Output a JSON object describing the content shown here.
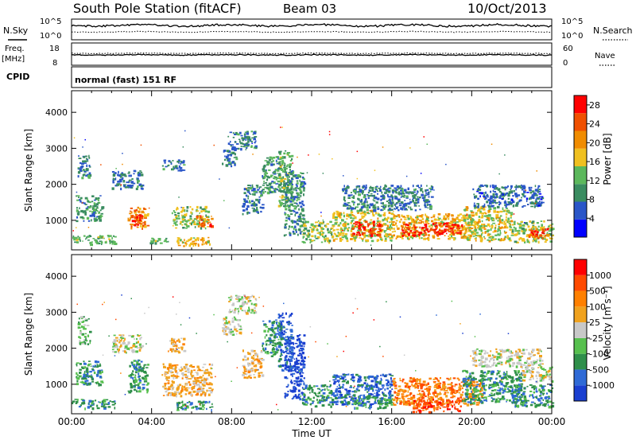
{
  "header": {
    "station": "South Pole Station (fitACF)",
    "beam": "Beam 03",
    "date": "10/Oct/2013"
  },
  "strip_labels": {
    "nsky": "N.Sky",
    "nsearch": "N.Search",
    "freq": "Freq.",
    "freq_unit": "[MHz]",
    "nave": "Nave",
    "cpid": "CPID",
    "cpid_value": "normal (fast) 151 RF",
    "nsky_ticks": [
      "10^5",
      "10^0"
    ],
    "nsearch_ticks": [
      "10^5",
      "10^0"
    ],
    "freq_ticks": [
      "18",
      "8"
    ],
    "nave_ticks": [
      "60",
      "0"
    ]
  },
  "colors": {
    "power_scale": [
      "#0000ff",
      "#2a56c8",
      "#3a8c60",
      "#5cb85c",
      "#f0c020",
      "#f08c00",
      "#f05000",
      "#ff0000"
    ],
    "velocity_scale": [
      "#1a3fd0",
      "#2f6ad6",
      "#2f8f4a",
      "#57c04e",
      "#c8c8c8",
      "#f0a21e",
      "#ff8000",
      "#ff4a00",
      "#ff0000"
    ]
  },
  "chart_data": [
    {
      "type": "heatmap",
      "name": "power",
      "ylabel": "Slant Range [km]",
      "xlim": [
        0,
        24
      ],
      "ylim": [
        180,
        4600
      ],
      "yticks": [
        "1000",
        "2000",
        "3000",
        "4000"
      ],
      "colorbar": {
        "label": "Power [dB]",
        "ticks": [
          "4",
          "8",
          "12",
          "16",
          "20",
          "24",
          "28"
        ],
        "range": [
          0,
          30
        ]
      },
      "regions": [
        {
          "t0": 0.3,
          "t1": 0.9,
          "r0": 2200,
          "r1": 2900,
          "level": 8
        },
        {
          "t0": 0.2,
          "t1": 1.5,
          "r0": 1000,
          "r1": 1700,
          "level": 10
        },
        {
          "t0": 0.0,
          "t1": 2.2,
          "r0": 350,
          "r1": 600,
          "level": 12
        },
        {
          "t0": 2.0,
          "t1": 3.5,
          "r0": 1900,
          "r1": 2400,
          "level": 8
        },
        {
          "t0": 2.8,
          "t1": 3.8,
          "r0": 800,
          "r1": 1400,
          "level": 20
        },
        {
          "t0": 3.0,
          "t1": 3.5,
          "r0": 900,
          "r1": 1200,
          "level": 26
        },
        {
          "t0": 3.8,
          "t1": 5.0,
          "r0": 380,
          "r1": 520,
          "level": 12
        },
        {
          "t0": 4.5,
          "t1": 5.6,
          "r0": 2400,
          "r1": 2700,
          "level": 8
        },
        {
          "t0": 5.0,
          "t1": 6.8,
          "r0": 800,
          "r1": 1400,
          "level": 14
        },
        {
          "t0": 6.2,
          "t1": 7.0,
          "r0": 850,
          "r1": 1150,
          "level": 24
        },
        {
          "t0": 5.2,
          "t1": 7.0,
          "r0": 300,
          "r1": 550,
          "level": 18
        },
        {
          "t0": 7.5,
          "t1": 8.2,
          "r0": 2500,
          "r1": 3000,
          "level": 8
        },
        {
          "t0": 7.8,
          "t1": 9.2,
          "r0": 3000,
          "r1": 3500,
          "level": 8
        },
        {
          "t0": 8.5,
          "t1": 9.5,
          "r0": 1200,
          "r1": 2000,
          "level": 8
        },
        {
          "t0": 9.5,
          "t1": 10.5,
          "r0": 1800,
          "r1": 2800,
          "level": 10
        },
        {
          "t0": 10.3,
          "t1": 11.0,
          "r0": 1400,
          "r1": 3000,
          "level": 12
        },
        {
          "t0": 10.6,
          "t1": 11.6,
          "r0": 600,
          "r1": 2400,
          "level": 9
        },
        {
          "t0": 11.5,
          "t1": 13.0,
          "r0": 400,
          "r1": 1000,
          "level": 14
        },
        {
          "t0": 13.0,
          "t1": 16.0,
          "r0": 450,
          "r1": 1300,
          "level": 16
        },
        {
          "t0": 14.0,
          "t1": 15.5,
          "r0": 600,
          "r1": 1000,
          "level": 26
        },
        {
          "t0": 13.5,
          "t1": 18.0,
          "r0": 1300,
          "r1": 2000,
          "level": 8
        },
        {
          "t0": 16.0,
          "t1": 20.0,
          "r0": 500,
          "r1": 1200,
          "level": 18
        },
        {
          "t0": 16.5,
          "t1": 19.5,
          "r0": 600,
          "r1": 950,
          "level": 27
        },
        {
          "t0": 19.5,
          "t1": 22.0,
          "r0": 450,
          "r1": 1400,
          "level": 16
        },
        {
          "t0": 20.0,
          "t1": 23.5,
          "r0": 1400,
          "r1": 2000,
          "level": 7
        },
        {
          "t0": 22.0,
          "t1": 24.0,
          "r0": 400,
          "r1": 1000,
          "level": 14
        },
        {
          "t0": 22.8,
          "t1": 23.8,
          "r0": 500,
          "r1": 800,
          "level": 24
        }
      ]
    },
    {
      "type": "heatmap",
      "name": "velocity",
      "ylabel": "Slant Range [km]",
      "xlabel": "Time UT",
      "xlim": [
        0,
        24
      ],
      "ylim": [
        180,
        4600
      ],
      "xticks": [
        "00:00",
        "04:00",
        "08:00",
        "12:00",
        "16:00",
        "20:00",
        "00:00"
      ],
      "yticks": [
        "1000",
        "2000",
        "3000",
        "4000"
      ],
      "colorbar": {
        "label": "Velocity [m s⁻¹]",
        "ticks": [
          "1000",
          "500",
          "100",
          "25",
          "-25",
          "-100",
          "-500",
          "-1000"
        ]
      },
      "regions": [
        {
          "t0": 0.3,
          "t1": 0.9,
          "r0": 2100,
          "r1": 2900,
          "level": 3
        },
        {
          "t0": 0.2,
          "t1": 1.5,
          "r0": 1000,
          "r1": 1700,
          "level": 2
        },
        {
          "t0": 0.0,
          "t1": 2.2,
          "r0": 350,
          "r1": 600,
          "level": 2
        },
        {
          "t0": 2.0,
          "t1": 3.5,
          "r0": 1900,
          "r1": 2400,
          "level": 4
        },
        {
          "t0": 2.8,
          "t1": 3.8,
          "r0": 800,
          "r1": 1700,
          "level": 2
        },
        {
          "t0": 4.5,
          "t1": 7.0,
          "r0": 700,
          "r1": 1600,
          "level": 5
        },
        {
          "t0": 4.8,
          "t1": 5.6,
          "r0": 1900,
          "r1": 2300,
          "level": 5
        },
        {
          "t0": 5.2,
          "t1": 7.0,
          "r0": 300,
          "r1": 550,
          "level": 2
        },
        {
          "t0": 7.5,
          "t1": 8.5,
          "r0": 2400,
          "r1": 2900,
          "level": 4
        },
        {
          "t0": 7.8,
          "t1": 9.2,
          "r0": 3000,
          "r1": 3500,
          "level": 4
        },
        {
          "t0": 8.5,
          "t1": 9.5,
          "r0": 1200,
          "r1": 2000,
          "level": 5
        },
        {
          "t0": 9.5,
          "t1": 10.5,
          "r0": 1800,
          "r1": 2800,
          "level": 2
        },
        {
          "t0": 10.3,
          "t1": 11.0,
          "r0": 1400,
          "r1": 3000,
          "level": 1
        },
        {
          "t0": 10.6,
          "t1": 11.6,
          "r0": 600,
          "r1": 2400,
          "level": 0
        },
        {
          "t0": 11.5,
          "t1": 13.0,
          "r0": 400,
          "r1": 1000,
          "level": 2
        },
        {
          "t0": 13.0,
          "t1": 16.0,
          "r0": 450,
          "r1": 1300,
          "level": 1
        },
        {
          "t0": 14.0,
          "t1": 16.0,
          "r0": 350,
          "r1": 700,
          "level": 2
        },
        {
          "t0": 16.0,
          "t1": 20.5,
          "r0": 450,
          "r1": 1200,
          "level": 6
        },
        {
          "t0": 17.0,
          "t1": 19.5,
          "r0": 250,
          "r1": 600,
          "level": 7
        },
        {
          "t0": 19.5,
          "t1": 22.5,
          "r0": 500,
          "r1": 1400,
          "level": 2
        },
        {
          "t0": 20.0,
          "t1": 23.5,
          "r0": 1500,
          "r1": 2000,
          "level": 4
        },
        {
          "t0": 22.5,
          "t1": 24.0,
          "r0": 1100,
          "r1": 1500,
          "level": 4
        },
        {
          "t0": 22.0,
          "t1": 24.0,
          "r0": 400,
          "r1": 1000,
          "level": 2
        }
      ]
    }
  ]
}
